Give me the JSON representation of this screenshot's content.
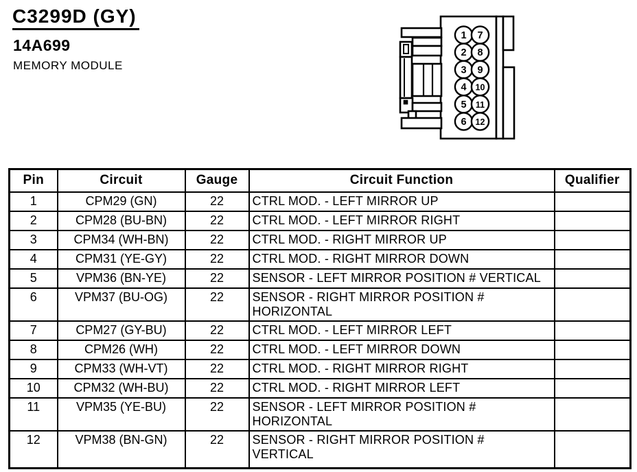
{
  "header": {
    "connector_id": "C3299D (GY)",
    "part_number": "14A699",
    "module_name": "MEMORY MODULE"
  },
  "connector": {
    "description": "12-cavity connector side view, two columns of pins",
    "pin_columns": [
      [
        "1",
        "2",
        "3",
        "4",
        "5",
        "6"
      ],
      [
        "7",
        "8",
        "9",
        "10",
        "11",
        "12"
      ]
    ]
  },
  "table": {
    "columns": [
      "Pin",
      "Circuit",
      "Gauge",
      "Circuit Function",
      "Qualifier"
    ],
    "rows": [
      {
        "pin": "1",
        "circuit": "CPM29 (GN)",
        "gauge": "22",
        "function": "CTRL MOD. - LEFT MIRROR UP",
        "qualifier": ""
      },
      {
        "pin": "2",
        "circuit": "CPM28 (BU-BN)",
        "gauge": "22",
        "function": "CTRL MOD. - LEFT MIRROR RIGHT",
        "qualifier": ""
      },
      {
        "pin": "3",
        "circuit": "CPM34 (WH-BN)",
        "gauge": "22",
        "function": "CTRL MOD. - RIGHT MIRROR UP",
        "qualifier": ""
      },
      {
        "pin": "4",
        "circuit": "CPM31 (YE-GY)",
        "gauge": "22",
        "function": "CTRL MOD. - RIGHT MIRROR DOWN",
        "qualifier": ""
      },
      {
        "pin": "5",
        "circuit": "VPM36 (BN-YE)",
        "gauge": "22",
        "function": "SENSOR - LEFT MIRROR POSITION # VERTICAL",
        "qualifier": ""
      },
      {
        "pin": "6",
        "circuit": "VPM37 (BU-OG)",
        "gauge": "22",
        "function": "SENSOR - RIGHT MIRROR POSITION #\nHORIZONTAL",
        "qualifier": ""
      },
      {
        "pin": "7",
        "circuit": "CPM27 (GY-BU)",
        "gauge": "22",
        "function": "CTRL MOD. - LEFT MIRROR LEFT",
        "qualifier": ""
      },
      {
        "pin": "8",
        "circuit": "CPM26 (WH)",
        "gauge": "22",
        "function": "CTRL MOD. - LEFT MIRROR DOWN",
        "qualifier": ""
      },
      {
        "pin": "9",
        "circuit": "CPM33 (WH-VT)",
        "gauge": "22",
        "function": "CTRL MOD. - RIGHT MIRROR RIGHT",
        "qualifier": ""
      },
      {
        "pin": "10",
        "circuit": "CPM32 (WH-BU)",
        "gauge": "22",
        "function": "CTRL MOD. - RIGHT MIRROR LEFT",
        "qualifier": ""
      },
      {
        "pin": "11",
        "circuit": "VPM35 (YE-BU)",
        "gauge": "22",
        "function": "SENSOR - LEFT MIRROR POSITION #\nHORIZONTAL",
        "qualifier": ""
      },
      {
        "pin": "12",
        "circuit": "VPM38 (BN-GN)",
        "gauge": "22",
        "function": "SENSOR - RIGHT MIRROR POSITION #\nVERTICAL",
        "qualifier": ""
      }
    ]
  },
  "colors": {
    "ink": "#000000",
    "paper": "#ffffff"
  }
}
